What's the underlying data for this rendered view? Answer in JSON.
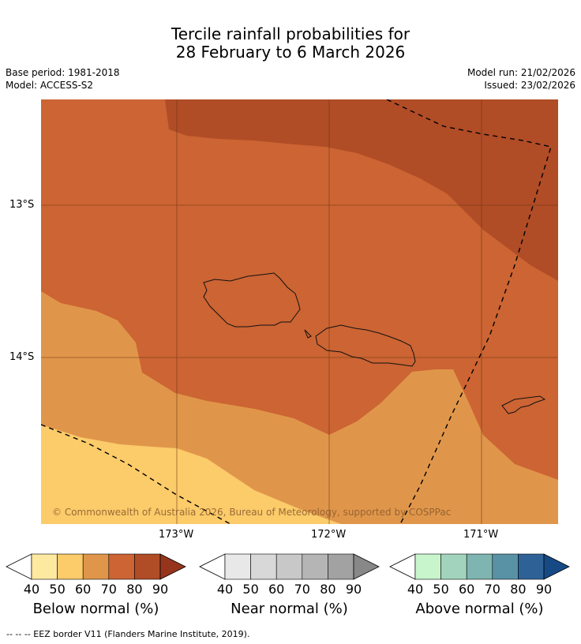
{
  "title": {
    "line1": "Tercile rainfall probabilities for",
    "line2": "28 February to 6 March 2026"
  },
  "meta": {
    "base_period": "Base period: 1981-2018",
    "model": "Model: ACCESS-S2",
    "model_run": "Model run: 21/02/2026",
    "issued": "Issued: 23/02/2026"
  },
  "map": {
    "lat_ticks": [
      "13°S",
      "14°S"
    ],
    "lon_ticks": [
      "173°W",
      "172°W",
      "171°W"
    ],
    "copyright": "© Commonwealth of Australia 2026, Bureau of Meteorology, supported by COSPPac",
    "band_colors": {
      "below_60_70": "#e0964a",
      "below_50_60": "#fccb6a",
      "below_70_80": "#cc6433",
      "below_80_90": "#b04c26"
    }
  },
  "colorbars": [
    {
      "label": "Below normal (%)",
      "ticks": [
        "40",
        "50",
        "60",
        "70",
        "80",
        "90"
      ],
      "colors": [
        "#fde9a0",
        "#fccb6a",
        "#e0964a",
        "#cc6433",
        "#b04c26",
        "#96351c"
      ]
    },
    {
      "label": "Near normal (%)",
      "ticks": [
        "40",
        "50",
        "60",
        "70",
        "80",
        "90"
      ],
      "colors": [
        "#e8e8e8",
        "#d8d8d8",
        "#c8c8c8",
        "#b5b5b5",
        "#a2a2a2",
        "#888888"
      ]
    },
    {
      "label": "Above normal (%)",
      "ticks": [
        "40",
        "50",
        "60",
        "70",
        "80",
        "90"
      ],
      "colors": [
        "#c8f5cc",
        "#a2d4bd",
        "#7fb5b0",
        "#5a92a5",
        "#2e6297",
        "#164a85"
      ]
    }
  ],
  "footnote": "--  --  -- EEZ border V11 (Flanders Marine Institute, 2019)."
}
